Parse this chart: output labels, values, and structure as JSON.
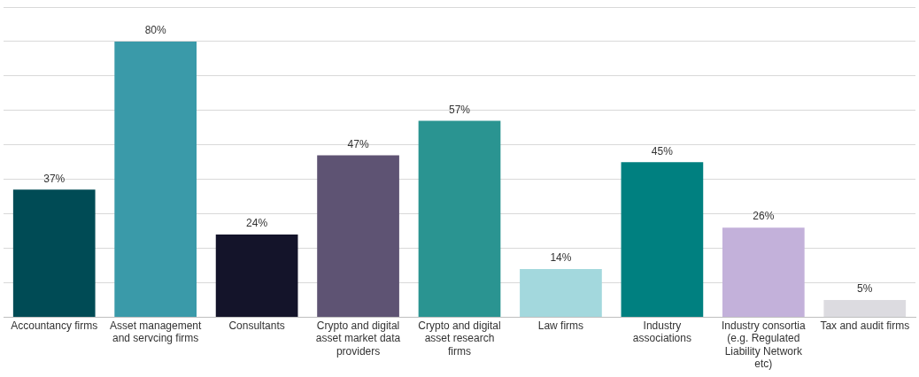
{
  "chart_data": {
    "type": "bar",
    "categories": [
      "Accountancy firms",
      "Asset management and servcing firms",
      "Consultants",
      "Crypto and digital asset market data providers",
      "Crypto and digital asset research firms",
      "Law firms",
      "Industry associations",
      "Industry consortia (e.g. Regulated Liability Network etc)",
      "Tax and audit firms"
    ],
    "values": [
      37,
      80,
      24,
      47,
      57,
      14,
      45,
      26,
      5
    ],
    "colors": [
      "#004b55",
      "#3a9aa9",
      "#14142a",
      "#5e5373",
      "#2a9491",
      "#a3d8dd",
      "#008080",
      "#c3b1da",
      "#dcdbe0"
    ],
    "value_labels": [
      "37%",
      "80%",
      "24%",
      "47%",
      "57%",
      "14%",
      "45%",
      "26%",
      "5%"
    ],
    "ylim": [
      0,
      90
    ],
    "yticks": [
      {
        "value": 0,
        "label": null
      },
      {
        "value": 10,
        "label": null
      },
      {
        "value": 20,
        "label": null
      },
      {
        "value": 30,
        "label": null
      },
      {
        "value": 40,
        "label": null
      },
      {
        "value": 50,
        "label": null
      },
      {
        "value": 60,
        "label": null
      },
      {
        "value": 70,
        "label": null
      },
      {
        "value": 80,
        "label": null
      },
      {
        "value": 90,
        "label": null
      }
    ],
    "grid": "y",
    "tick_labels": "x",
    "legend": false
  }
}
